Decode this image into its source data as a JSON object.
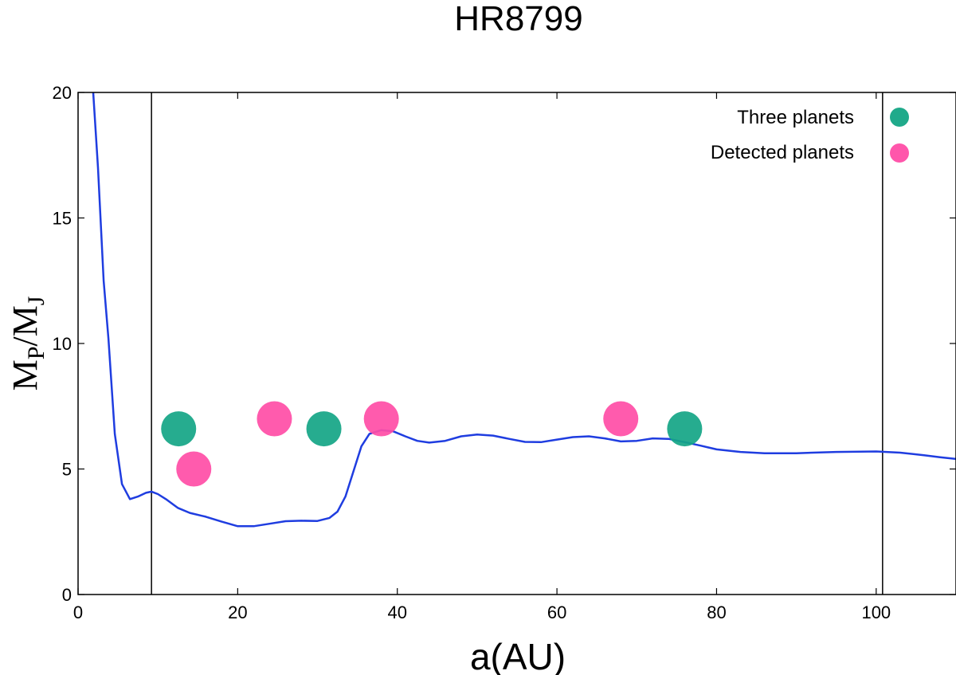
{
  "chart_data": {
    "type": "scatter",
    "title": "HR8799",
    "xlabel": "a(AU)",
    "ylabel": {
      "base1": "M",
      "sub1": "P",
      "sep": "/",
      "base2": "M",
      "sub2": "J"
    },
    "xlim": [
      0,
      110
    ],
    "ylim": [
      0,
      20
    ],
    "xticks": [
      0,
      20,
      40,
      60,
      80,
      100
    ],
    "yticks": [
      0,
      5,
      10,
      15,
      20
    ],
    "grid": false,
    "legend_position": "top-right",
    "vertical_lines": [
      9.2,
      100.8
    ],
    "series": [
      {
        "kind": "line",
        "color": "#1f3de0",
        "points": [
          [
            1.9,
            20.0
          ],
          [
            2.5,
            17.0
          ],
          [
            3.2,
            12.5
          ],
          [
            3.8,
            10.2
          ],
          [
            4.6,
            6.4
          ],
          [
            5.5,
            4.4
          ],
          [
            6.5,
            3.8
          ],
          [
            7.5,
            3.9
          ],
          [
            8.5,
            4.05
          ],
          [
            9.2,
            4.1
          ],
          [
            10,
            4.0
          ],
          [
            11,
            3.8
          ],
          [
            12.5,
            3.45
          ],
          [
            14,
            3.25
          ],
          [
            16,
            3.1
          ],
          [
            18,
            2.9
          ],
          [
            20,
            2.72
          ],
          [
            22,
            2.72
          ],
          [
            24,
            2.82
          ],
          [
            26,
            2.92
          ],
          [
            28,
            2.94
          ],
          [
            30,
            2.93
          ],
          [
            31.5,
            3.05
          ],
          [
            32.5,
            3.3
          ],
          [
            33.5,
            3.9
          ],
          [
            34.5,
            4.9
          ],
          [
            35.5,
            5.9
          ],
          [
            36.5,
            6.4
          ],
          [
            38,
            6.55
          ],
          [
            39.5,
            6.5
          ],
          [
            41,
            6.3
          ],
          [
            42.5,
            6.12
          ],
          [
            44,
            6.05
          ],
          [
            46,
            6.12
          ],
          [
            48,
            6.3
          ],
          [
            50,
            6.37
          ],
          [
            52,
            6.33
          ],
          [
            54,
            6.2
          ],
          [
            56,
            6.08
          ],
          [
            58,
            6.07
          ],
          [
            60,
            6.17
          ],
          [
            62,
            6.27
          ],
          [
            64,
            6.3
          ],
          [
            66,
            6.22
          ],
          [
            68,
            6.1
          ],
          [
            70,
            6.12
          ],
          [
            72,
            6.22
          ],
          [
            74,
            6.2
          ],
          [
            76,
            6.07
          ],
          [
            78,
            5.93
          ],
          [
            80,
            5.78
          ],
          [
            83,
            5.68
          ],
          [
            86,
            5.63
          ],
          [
            90,
            5.63
          ],
          [
            95,
            5.68
          ],
          [
            100,
            5.7
          ],
          [
            103,
            5.65
          ],
          [
            106,
            5.55
          ],
          [
            108,
            5.47
          ],
          [
            110,
            5.4
          ]
        ]
      },
      {
        "name": "Three planets",
        "kind": "scatter",
        "color": "#14a585",
        "points": [
          [
            12.6,
            6.6
          ],
          [
            30.8,
            6.6
          ],
          [
            76.0,
            6.6
          ]
        ]
      },
      {
        "name": "Detected planets",
        "kind": "scatter",
        "color": "#ff4da6",
        "points": [
          [
            14.5,
            5.0
          ],
          [
            24.6,
            7.0
          ],
          [
            38.0,
            7.0
          ],
          [
            68.0,
            7.0
          ]
        ]
      }
    ]
  }
}
